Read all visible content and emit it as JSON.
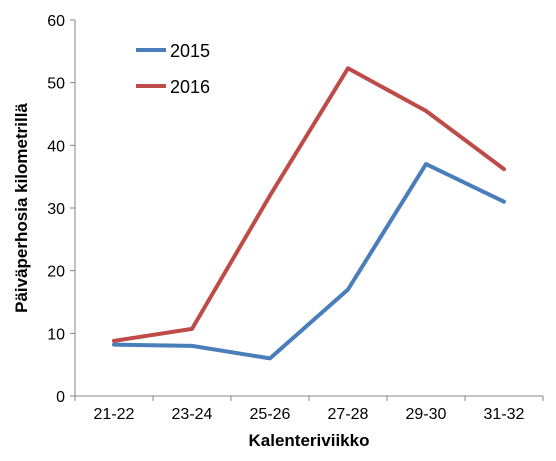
{
  "chart_data": {
    "type": "line",
    "categories": [
      "21-22",
      "23-24",
      "25-26",
      "27-28",
      "29-30",
      "31-32"
    ],
    "series": [
      {
        "name": "2015",
        "color": "#4a7ebb",
        "values": [
          8.2,
          8.0,
          6.0,
          17.0,
          37.0,
          31.0
        ]
      },
      {
        "name": "2016",
        "color": "#be4b48",
        "values": [
          8.8,
          10.7,
          32.0,
          52.3,
          45.5,
          36.2
        ]
      }
    ],
    "xlabel": "Kalenteriviikko",
    "ylabel": "Päiväperhosia kilometrillä",
    "ylim": [
      0,
      60
    ],
    "yticks": [
      "0",
      "10",
      "20",
      "30",
      "40",
      "50",
      "60"
    ],
    "grid": false,
    "legend": "top-left"
  }
}
